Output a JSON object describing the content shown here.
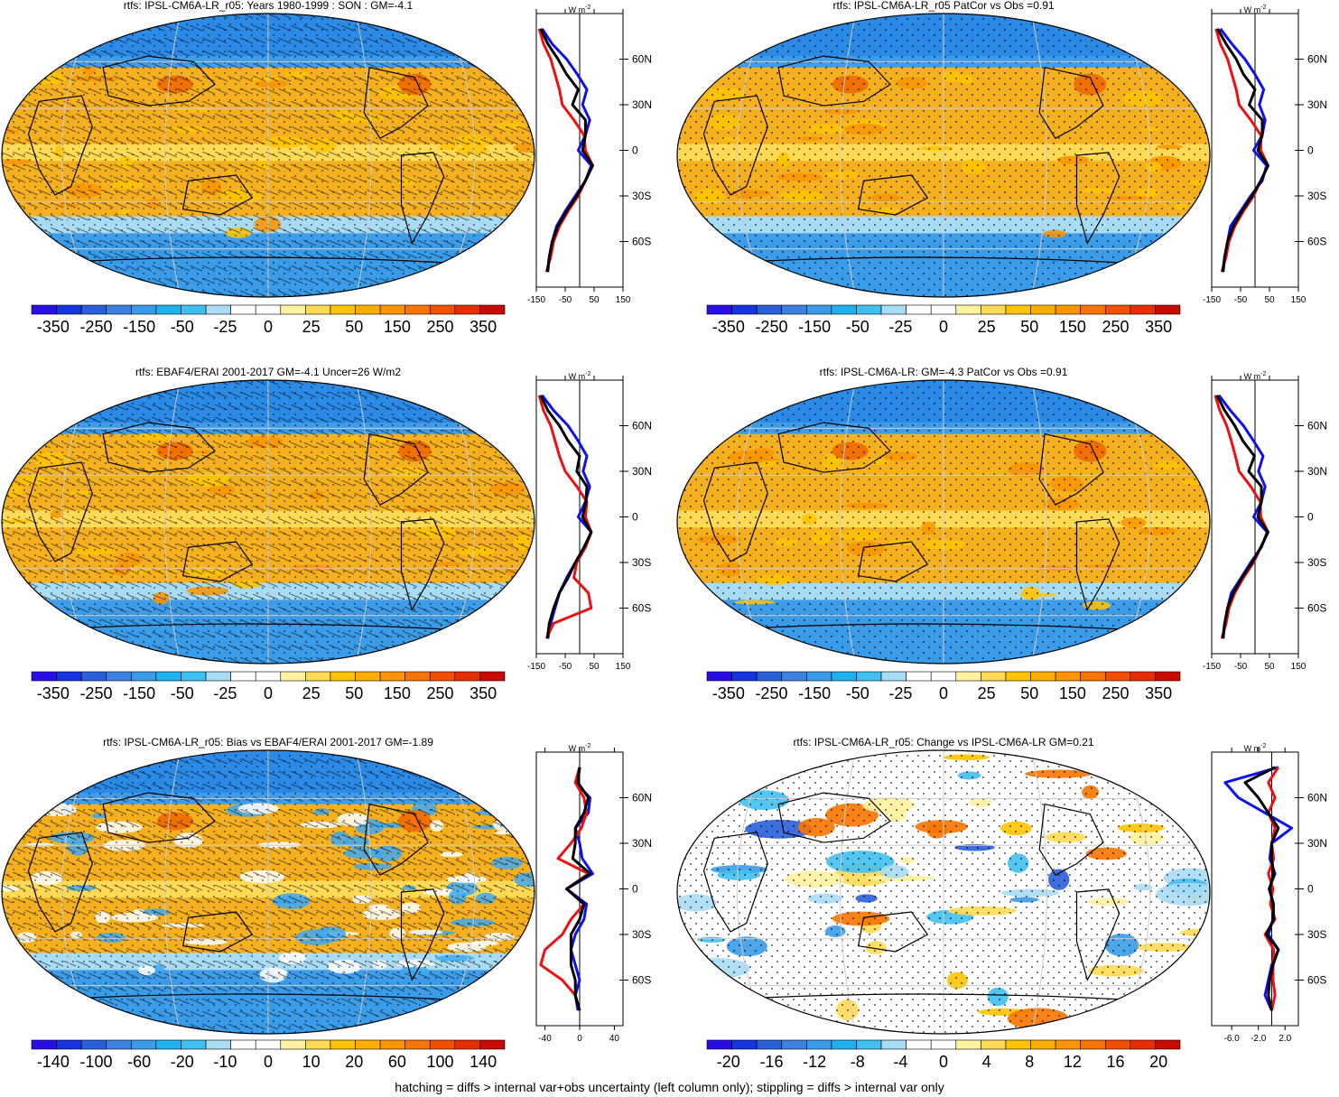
{
  "footer": "hatching = diffs > internal var+obs uncertainty (left column only); stippling = diffs > internal var only",
  "zonal_units": [
    "W m",
    "-2"
  ],
  "lat_ticks": [
    "60N",
    "30N",
    "0",
    "30S",
    "60S"
  ],
  "lat_values": [
    60,
    30,
    0,
    -30,
    -60
  ],
  "colorbars": {
    "main": {
      "colors": [
        "#2a0ee6",
        "#1633e0",
        "#2a5fda",
        "#3e80e0",
        "#3a9ce8",
        "#20b0ee",
        "#40c0f0",
        "#a8dcf4",
        "#ffffff",
        "#ffffff",
        "#fff2a0",
        "#ffda55",
        "#ffc400",
        "#ffae00",
        "#ff9400",
        "#f87400",
        "#f05000",
        "#e62e00",
        "#c80a00"
      ],
      "labels": [
        "-350",
        "-250",
        "-150",
        "-50",
        "-25",
        "0",
        "25",
        "50",
        "150",
        "250",
        "350"
      ]
    },
    "bias": {
      "colors": [
        "#2a0ee6",
        "#1633e0",
        "#2a5fda",
        "#3e80e0",
        "#3a9ce8",
        "#20b0ee",
        "#40c0f0",
        "#a8dcf4",
        "#ffffff",
        "#ffffff",
        "#fff2a0",
        "#ffda55",
        "#ffc400",
        "#ffae00",
        "#ff9400",
        "#f87400",
        "#f05000",
        "#e62e00",
        "#c80a00"
      ],
      "labels": [
        "-140",
        "-100",
        "-60",
        "-20",
        "-10",
        "0",
        "10",
        "20",
        "60",
        "100",
        "140"
      ]
    },
    "change": {
      "colors": [
        "#2a0ee6",
        "#1633e0",
        "#2a5fda",
        "#3e80e0",
        "#3a9ce8",
        "#20b0ee",
        "#40c0f0",
        "#a8dcf4",
        "#ffffff",
        "#ffffff",
        "#fff2a0",
        "#ffda55",
        "#ffc400",
        "#ffae00",
        "#ff9400",
        "#f87400",
        "#f05000",
        "#e62e00",
        "#c80a00"
      ],
      "labels": [
        "-20",
        "-16",
        "-12",
        "-8",
        "-4",
        "0",
        "4",
        "8",
        "12",
        "16",
        "20"
      ]
    }
  },
  "chart_data": [
    {
      "type": "heatmap",
      "title": "rtfs: IPSL-CM6A-LR_r05: Years 1980-1999 : SON : GM=-4.1",
      "colorbar": "main",
      "pattern": "hatch",
      "palette": "warm",
      "zonal_mean": {
        "type": "line",
        "xlim": [
          -150,
          150
        ],
        "xticks": [
          "-150",
          "-50",
          "50",
          "150"
        ],
        "series_colors": [
          "#1010ee",
          "#ee1010",
          "#000000"
        ],
        "lat": [
          80,
          70,
          60,
          50,
          40,
          30,
          20,
          10,
          0,
          -10,
          -20,
          -30,
          -40,
          -50,
          -60,
          -70,
          -80
        ],
        "series": [
          {
            "values": [
              -130,
              -95,
              -45,
              -8,
              25,
              10,
              35,
              20,
              -5,
              40,
              20,
              -15,
              -50,
              -80,
              -95,
              -105,
              -110
            ]
          },
          {
            "values": [
              -140,
              -125,
              -100,
              -85,
              -70,
              -60,
              -20,
              15,
              20,
              45,
              20,
              -5,
              -40,
              -70,
              -90,
              -100,
              -115
            ]
          },
          {
            "values": [
              -135,
              -110,
              -75,
              -45,
              -5,
              -25,
              20,
              20,
              10,
              45,
              20,
              -10,
              -45,
              -75,
              -95,
              -105,
              -112
            ]
          }
        ]
      }
    },
    {
      "type": "heatmap",
      "title": "rtfs: IPSL-CM6A-LR_r05 PatCor vs Obs =0.91",
      "colorbar": "main",
      "pattern": "stipple",
      "palette": "warm",
      "zonal_mean": {
        "type": "line",
        "xlim": [
          -150,
          150
        ],
        "xticks": [
          "-150",
          "-50",
          "50",
          "150"
        ],
        "series_colors": [
          "#1010ee",
          "#ee1010",
          "#000000"
        ],
        "lat": [
          80,
          70,
          60,
          50,
          40,
          30,
          20,
          10,
          0,
          -10,
          -20,
          -30,
          -40,
          -50,
          -60,
          -70,
          -80
        ],
        "series": [
          {
            "values": [
              -120,
              -80,
              -35,
              0,
              30,
              15,
              35,
              25,
              -5,
              40,
              25,
              -15,
              -50,
              -85,
              -95,
              -105,
              -110
            ]
          },
          {
            "values": [
              -135,
              -120,
              -95,
              -80,
              -65,
              -55,
              -15,
              20,
              20,
              45,
              20,
              -5,
              -40,
              -70,
              -90,
              -100,
              -115
            ]
          },
          {
            "values": [
              -130,
              -100,
              -65,
              -40,
              0,
              -20,
              25,
              25,
              10,
              45,
              20,
              -10,
              -45,
              -75,
              -95,
              -105,
              -112
            ]
          }
        ]
      }
    },
    {
      "type": "heatmap",
      "title": "rtfs: EBAF4/ERAI 2001-2017 GM=-4.1 Uncer=26 W/m2",
      "colorbar": "main",
      "pattern": "hatch",
      "palette": "warm",
      "zonal_mean": {
        "type": "line",
        "xlim": [
          -150,
          150
        ],
        "xticks": [
          "-150",
          "-50",
          "50",
          "150"
        ],
        "series_colors": [
          "#1010ee",
          "#ee1010",
          "#000000"
        ],
        "lat": [
          80,
          70,
          60,
          50,
          40,
          30,
          20,
          10,
          0,
          -10,
          -20,
          -30,
          -40,
          -50,
          -60,
          -70,
          -80
        ],
        "series": [
          {
            "values": [
              -130,
              -90,
              -40,
              -5,
              25,
              12,
              35,
              20,
              -5,
              40,
              20,
              -15,
              -45,
              -70,
              -85,
              -100,
              -110
            ]
          },
          {
            "values": [
              -140,
              -125,
              -100,
              -85,
              -70,
              -50,
              -10,
              25,
              20,
              40,
              20,
              -10,
              -20,
              30,
              40,
              -90,
              -115
            ]
          },
          {
            "values": [
              -135,
              -110,
              -70,
              -40,
              0,
              -10,
              25,
              22,
              10,
              40,
              15,
              -15,
              -40,
              -70,
              -90,
              -105,
              -112
            ]
          }
        ]
      }
    },
    {
      "type": "heatmap",
      "title": "rtfs: IPSL-CM6A-LR: GM=-4.3 PatCor vs Obs =0.91",
      "colorbar": "main",
      "pattern": "stipple",
      "palette": "warm",
      "zonal_mean": {
        "type": "line",
        "xlim": [
          -150,
          150
        ],
        "xticks": [
          "-150",
          "-50",
          "50",
          "150"
        ],
        "series_colors": [
          "#1010ee",
          "#ee1010",
          "#000000"
        ],
        "lat": [
          80,
          70,
          60,
          50,
          40,
          30,
          20,
          10,
          0,
          -10,
          -20,
          -30,
          -40,
          -50,
          -60,
          -70,
          -80
        ],
        "series": [
          {
            "values": [
              -125,
              -85,
              -40,
              -5,
              28,
              12,
              35,
              22,
              -5,
              42,
              22,
              -15,
              -48,
              -82,
              -95,
              -105,
              -110
            ]
          },
          {
            "values": [
              -138,
              -122,
              -98,
              -82,
              -68,
              -55,
              -15,
              18,
              20,
              45,
              20,
              -5,
              -40,
              -70,
              -90,
              -100,
              -115
            ]
          },
          {
            "values": [
              -132,
              -105,
              -70,
              -42,
              -2,
              -22,
              22,
              22,
              10,
              45,
              20,
              -10,
              -45,
              -75,
              -95,
              -105,
              -112
            ]
          }
        ]
      }
    },
    {
      "type": "heatmap",
      "title": "rtfs: IPSL-CM6A-LR_r05: Bias vs EBAF4/ERAI 2001-2017  GM=-1.89",
      "colorbar": "bias",
      "pattern": "hatch",
      "palette": "bias",
      "zonal_mean": {
        "type": "line",
        "xlim": [
          -50,
          50
        ],
        "xticks": [
          "-40",
          "0",
          "40"
        ],
        "series_colors": [
          "#1010ee",
          "#ee1010",
          "#000000"
        ],
        "lat": [
          80,
          70,
          60,
          50,
          40,
          30,
          20,
          10,
          0,
          -10,
          -20,
          -30,
          -40,
          -50,
          -60,
          -70,
          -80
        ],
        "series": [
          {
            "values": [
              0,
              -5,
              12,
              10,
              -5,
              0,
              3,
              15,
              -15,
              8,
              5,
              -5,
              -10,
              -5,
              0,
              -5,
              -2
            ]
          },
          {
            "values": [
              0,
              -5,
              5,
              8,
              2,
              -10,
              -25,
              10,
              -15,
              5,
              -10,
              -20,
              -40,
              -45,
              -20,
              -5,
              0
            ]
          },
          {
            "values": [
              0,
              -2,
              10,
              5,
              -5,
              -5,
              -8,
              12,
              -15,
              5,
              0,
              -10,
              -10,
              -10,
              -5,
              -5,
              0
            ]
          }
        ]
      }
    },
    {
      "type": "heatmap",
      "title": "rtfs: IPSL-CM6A-LR_r05: Change vs IPSL-CM6A-LR GM=0.21",
      "colorbar": "change",
      "pattern": "stipple",
      "palette": "change",
      "zonal_mean": {
        "type": "line",
        "xlim": [
          -9,
          4
        ],
        "xticks": [
          "-6.0",
          "-2.0",
          "2.0"
        ],
        "series_colors": [
          "#1010ee",
          "#ee1010",
          "#000000"
        ],
        "lat": [
          80,
          70,
          60,
          50,
          40,
          30,
          20,
          10,
          0,
          -10,
          -20,
          -30,
          -40,
          -50,
          -60,
          -70,
          -80
        ],
        "series": [
          {
            "values": [
              1,
              -7,
              -5,
              -1,
              3,
              0,
              -0.3,
              0.5,
              -0.4,
              0.3,
              0.2,
              -0.5,
              1,
              0,
              -0.5,
              -1,
              0
            ]
          },
          {
            "values": [
              1,
              -0.5,
              0.5,
              -0.5,
              0.5,
              0,
              0.3,
              -0.5,
              0.2,
              -0.2,
              0.5,
              -1,
              0.3,
              0.2,
              0.2,
              0.5,
              0
            ]
          },
          {
            "values": [
              0.5,
              -4,
              -2,
              -0.5,
              1,
              0,
              0,
              0.3,
              -0.3,
              0.2,
              0.3,
              -0.8,
              1,
              0.2,
              -0.3,
              -0.5,
              0
            ]
          }
        ]
      }
    }
  ]
}
